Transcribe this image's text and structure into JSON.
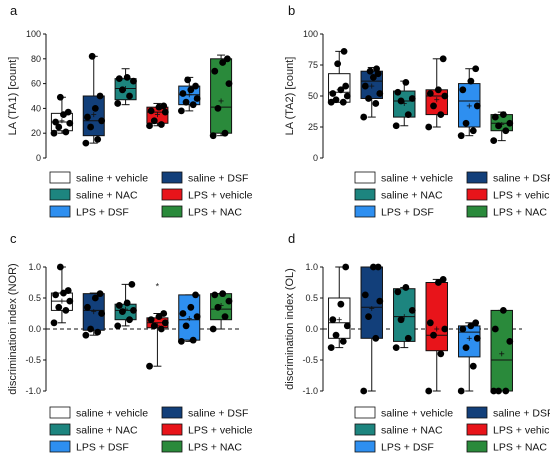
{
  "legend": {
    "entries": [
      {
        "label": "saline + vehicle",
        "color": "#ffffff"
      },
      {
        "label": "saline + DSF",
        "color": "#123f7a"
      },
      {
        "label": "saline + NAC",
        "color": "#1d857f"
      },
      {
        "label": "LPS + vehicle",
        "color": "#e8141a"
      },
      {
        "label": "LPS + DSF",
        "color": "#2e8ff0"
      },
      {
        "label": "LPS + NAC",
        "color": "#2a8a3b"
      }
    ]
  },
  "chart_data": [
    {
      "panel": "a",
      "type": "box",
      "ylabel": "LA (TA1) [count]",
      "ylim": [
        0,
        100
      ],
      "yticks": [
        "0",
        "20",
        "40",
        "60",
        "80",
        "100"
      ],
      "zero_line": false,
      "series": [
        {
          "name": "saline + vehicle",
          "q1": 22,
          "median": 29,
          "q3": 36,
          "min": 20,
          "max": 49,
          "mean": 30,
          "points": [
            20,
            21,
            25,
            28,
            29,
            35,
            37,
            49
          ]
        },
        {
          "name": "saline + DSF",
          "q1": 18,
          "median": 30,
          "q3": 50,
          "min": 12,
          "max": 82,
          "mean": 35,
          "points": [
            12,
            15,
            25,
            30,
            33,
            40,
            50,
            82
          ]
        },
        {
          "name": "saline + NAC",
          "q1": 47,
          "median": 56,
          "q3": 64,
          "min": 43,
          "max": 72,
          "mean": 56,
          "points": [
            44,
            50,
            55,
            62,
            64,
            65
          ]
        },
        {
          "name": "LPS + vehicle",
          "q1": 28,
          "median": 37,
          "q3": 41,
          "min": 26,
          "max": 44,
          "mean": 35,
          "points": [
            26,
            27,
            30,
            37,
            38,
            41,
            42
          ]
        },
        {
          "name": "LPS + DSF",
          "q1": 43,
          "median": 51,
          "q3": 58,
          "min": 38,
          "max": 65,
          "mean": 51,
          "points": [
            38,
            43,
            45,
            48,
            52,
            55,
            58,
            63
          ]
        },
        {
          "name": "LPS + NAC",
          "q1": 20,
          "median": 41,
          "q3": 80,
          "min": 18,
          "max": 83,
          "mean": 46,
          "points": [
            18,
            20,
            40,
            60,
            70,
            77,
            80
          ]
        }
      ]
    },
    {
      "panel": "b",
      "type": "box",
      "ylabel": "LA (TA2) [count]",
      "ylim": [
        0,
        100
      ],
      "yticks": [
        "0",
        "25",
        "50",
        "75",
        "100"
      ],
      "zero_line": false,
      "series": [
        {
          "name": "saline + vehicle",
          "q1": 45,
          "median": 53,
          "q3": 68,
          "min": 45,
          "max": 86,
          "mean": 55,
          "points": [
            45,
            45,
            47,
            50,
            52,
            55,
            58,
            76,
            86
          ]
        },
        {
          "name": "saline + DSF",
          "q1": 48,
          "median": 62,
          "q3": 70,
          "min": 33,
          "max": 73,
          "mean": 58,
          "points": [
            33,
            44,
            48,
            52,
            58,
            65,
            68,
            70,
            72
          ]
        },
        {
          "name": "saline + NAC",
          "q1": 33,
          "median": 46,
          "q3": 54,
          "min": 26,
          "max": 62,
          "mean": 44,
          "points": [
            26,
            35,
            46,
            48,
            53,
            61
          ]
        },
        {
          "name": "LPS + vehicle",
          "q1": 35,
          "median": 50,
          "q3": 55,
          "min": 25,
          "max": 80,
          "mean": 47,
          "points": [
            25,
            35,
            42,
            50,
            52,
            55,
            80
          ]
        },
        {
          "name": "LPS + DSF",
          "q1": 25,
          "median": 46,
          "q3": 60,
          "min": 18,
          "max": 72,
          "mean": 42,
          "points": [
            18,
            22,
            28,
            42,
            55,
            62,
            72
          ]
        },
        {
          "name": "LPS + NAC",
          "q1": 22,
          "median": 28,
          "q3": 35,
          "min": 14,
          "max": 37,
          "mean": 27,
          "points": [
            14,
            22,
            26,
            28,
            33,
            35
          ]
        }
      ]
    },
    {
      "panel": "c",
      "type": "box",
      "ylabel": "discrimination index (NOR)",
      "ylim": [
        -1.0,
        1.0
      ],
      "yticks": [
        "-1.0",
        "-0.5",
        "0.0",
        "0.5",
        "1.0"
      ],
      "zero_line": true,
      "series": [
        {
          "name": "saline + vehicle",
          "q1": 0.3,
          "median": 0.45,
          "q3": 0.58,
          "min": 0.1,
          "max": 1.0,
          "mean": 0.45,
          "points": [
            0.1,
            0.3,
            0.35,
            0.45,
            0.55,
            0.58,
            0.62,
            1.0
          ]
        },
        {
          "name": "saline + DSF",
          "q1": -0.02,
          "median": 0.3,
          "q3": 0.57,
          "min": -0.1,
          "max": 0.58,
          "mean": 0.28,
          "points": [
            -0.1,
            -0.05,
            0.0,
            0.25,
            0.35,
            0.5,
            0.57
          ]
        },
        {
          "name": "saline + NAC",
          "q1": 0.15,
          "median": 0.3,
          "q3": 0.4,
          "min": 0.05,
          "max": 0.72,
          "mean": 0.32,
          "points": [
            0.05,
            0.15,
            0.28,
            0.3,
            0.38,
            0.42,
            0.72
          ]
        },
        {
          "name": "LPS + vehicle",
          "q1": 0.02,
          "median": 0.1,
          "q3": 0.18,
          "min": -0.6,
          "max": 0.25,
          "mean": 0.05,
          "points": [
            -0.6,
            0.0,
            0.05,
            0.1,
            0.15,
            0.2,
            0.25
          ]
        },
        {
          "name": "LPS + DSF",
          "q1": -0.18,
          "median": 0.15,
          "q3": 0.55,
          "min": -0.2,
          "max": 0.55,
          "mean": 0.17,
          "points": [
            -0.2,
            -0.18,
            0.05,
            0.2,
            0.25,
            0.35,
            0.55
          ]
        },
        {
          "name": "LPS + NAC",
          "q1": 0.15,
          "median": 0.32,
          "q3": 0.57,
          "min": 0.0,
          "max": 0.57,
          "mean": 0.38,
          "points": [
            0.0,
            0.2,
            0.35,
            0.45,
            0.55,
            0.57
          ]
        }
      ],
      "annotations": [
        {
          "group": "LPS + vehicle",
          "value": 0.7,
          "text": "*"
        }
      ]
    },
    {
      "panel": "d",
      "type": "box",
      "ylabel": "discrimination index (OL)",
      "ylim": [
        -1.0,
        1.0
      ],
      "yticks": [
        "-1.0",
        "-0.5",
        "0.0",
        "0.5",
        "1.0"
      ],
      "zero_line": true,
      "series": [
        {
          "name": "saline + vehicle",
          "q1": -0.15,
          "median": 0.1,
          "q3": 0.5,
          "min": -0.3,
          "max": 1.0,
          "mean": 0.15,
          "points": [
            -0.3,
            -0.2,
            -0.1,
            0.05,
            0.15,
            0.4,
            1.0
          ]
        },
        {
          "name": "saline + DSF",
          "q1": -0.15,
          "median": 0.35,
          "q3": 1.0,
          "min": -1.0,
          "max": 1.0,
          "mean": 0.33,
          "points": [
            -1.0,
            -0.15,
            0.2,
            0.45,
            0.55,
            1.0,
            1.0
          ]
        },
        {
          "name": "saline + NAC",
          "q1": -0.2,
          "median": 0.2,
          "q3": 0.65,
          "min": -0.3,
          "max": 0.67,
          "mean": 0.2,
          "points": [
            -0.3,
            -0.15,
            0.15,
            0.3,
            0.6,
            0.67
          ]
        },
        {
          "name": "LPS + vehicle",
          "q1": -0.35,
          "median": -0.1,
          "q3": 0.75,
          "min": -1.0,
          "max": 0.8,
          "mean": 0.0,
          "points": [
            -1.0,
            -0.4,
            -0.1,
            0.0,
            0.1,
            0.75,
            0.8
          ]
        },
        {
          "name": "LPS + DSF",
          "q1": -0.45,
          "median": -0.05,
          "q3": 0.05,
          "min": -1.0,
          "max": 0.1,
          "mean": -0.15,
          "points": [
            -1.0,
            -0.6,
            -0.3,
            -0.15,
            0.0,
            0.05,
            0.1
          ]
        },
        {
          "name": "LPS + NAC",
          "q1": -1.0,
          "median": -0.5,
          "q3": 0.3,
          "min": -1.0,
          "max": 0.3,
          "mean": -0.4,
          "points": [
            -1.0,
            -1.0,
            -1.0,
            -0.2,
            0.0,
            0.3
          ]
        }
      ]
    }
  ]
}
